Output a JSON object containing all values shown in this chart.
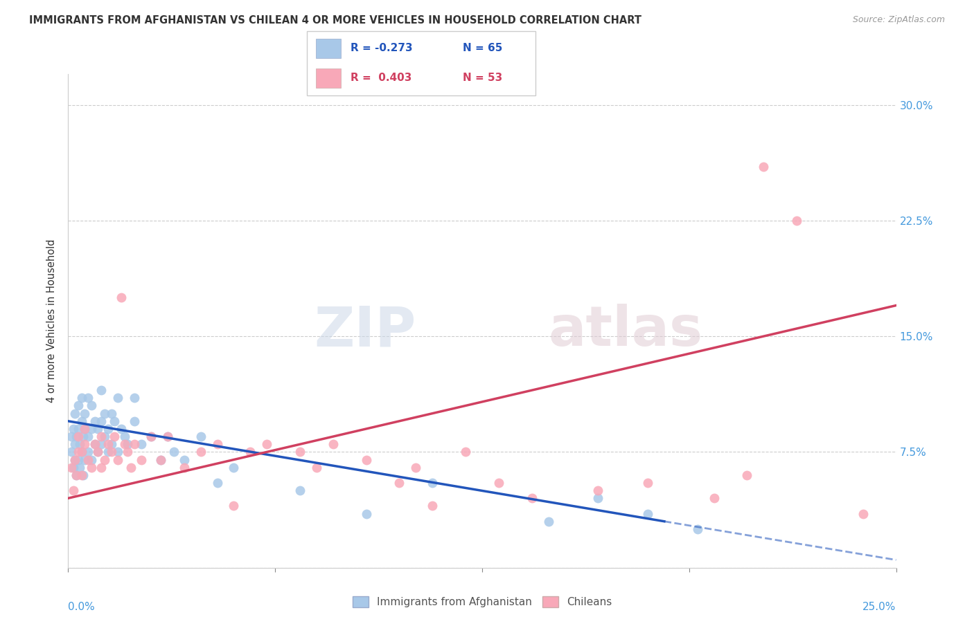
{
  "title": "IMMIGRANTS FROM AFGHANISTAN VS CHILEAN 4 OR MORE VEHICLES IN HOUSEHOLD CORRELATION CHART",
  "source": "Source: ZipAtlas.com",
  "ylabel": "4 or more Vehicles in Household",
  "legend1_r": "R = -0.273",
  "legend1_n": "N = 65",
  "legend2_r": "R =  0.403",
  "legend2_n": "N = 53",
  "legend_label1": "Immigrants from Afghanistan",
  "legend_label2": "Chileans",
  "xlim": [
    0.0,
    25.0
  ],
  "ylim": [
    0.0,
    32.0
  ],
  "yticks": [
    0.0,
    7.5,
    15.0,
    22.5,
    30.0
  ],
  "ytick_labels": [
    "",
    "7.5%",
    "15.0%",
    "22.5%",
    "30.0%"
  ],
  "color_blue": "#a8c8e8",
  "color_pink": "#f8a8b8",
  "line_blue": "#2255bb",
  "line_pink": "#d04060",
  "blue_line_x0": 0.0,
  "blue_line_y0": 9.5,
  "blue_line_x1": 18.0,
  "blue_line_y1": 3.0,
  "blue_dash_x1": 25.0,
  "blue_dash_y1": 0.5,
  "pink_line_x0": 0.0,
  "pink_line_y0": 4.5,
  "pink_line_x1": 25.0,
  "pink_line_y1": 17.0,
  "blue_scatter_x": [
    0.1,
    0.1,
    0.15,
    0.15,
    0.2,
    0.2,
    0.2,
    0.25,
    0.25,
    0.3,
    0.3,
    0.3,
    0.35,
    0.35,
    0.4,
    0.4,
    0.4,
    0.45,
    0.45,
    0.5,
    0.5,
    0.5,
    0.6,
    0.6,
    0.6,
    0.7,
    0.7,
    0.7,
    0.8,
    0.8,
    0.9,
    0.9,
    1.0,
    1.0,
    1.0,
    1.1,
    1.1,
    1.2,
    1.2,
    1.3,
    1.3,
    1.4,
    1.5,
    1.5,
    1.6,
    1.7,
    1.8,
    2.0,
    2.0,
    2.2,
    2.5,
    2.8,
    3.0,
    3.2,
    3.5,
    4.0,
    4.5,
    5.0,
    7.0,
    9.0,
    11.0,
    14.5,
    16.0,
    17.5,
    19.0
  ],
  "blue_scatter_y": [
    7.5,
    8.5,
    6.5,
    9.0,
    7.0,
    8.0,
    10.0,
    6.0,
    8.5,
    7.0,
    9.0,
    10.5,
    6.5,
    8.0,
    7.5,
    9.5,
    11.0,
    6.0,
    8.5,
    7.0,
    9.0,
    10.0,
    7.5,
    8.5,
    11.0,
    7.0,
    9.0,
    10.5,
    8.0,
    9.5,
    7.5,
    9.0,
    8.0,
    9.5,
    11.5,
    8.5,
    10.0,
    7.5,
    9.0,
    8.0,
    10.0,
    9.5,
    7.5,
    11.0,
    9.0,
    8.5,
    8.0,
    9.5,
    11.0,
    8.0,
    8.5,
    7.0,
    8.5,
    7.5,
    7.0,
    8.5,
    5.5,
    6.5,
    5.0,
    3.5,
    5.5,
    3.0,
    4.5,
    3.5,
    2.5
  ],
  "pink_scatter_x": [
    0.1,
    0.15,
    0.2,
    0.25,
    0.3,
    0.3,
    0.4,
    0.4,
    0.5,
    0.5,
    0.6,
    0.7,
    0.8,
    0.9,
    1.0,
    1.0,
    1.1,
    1.2,
    1.3,
    1.4,
    1.5,
    1.6,
    1.7,
    1.8,
    1.9,
    2.0,
    2.2,
    2.5,
    2.8,
    3.0,
    3.5,
    4.0,
    4.5,
    5.0,
    5.5,
    6.0,
    7.0,
    7.5,
    8.0,
    9.0,
    10.0,
    10.5,
    11.0,
    12.0,
    13.0,
    14.0,
    16.0,
    17.5,
    19.5,
    20.5,
    21.0,
    22.0,
    24.0
  ],
  "pink_scatter_y": [
    6.5,
    5.0,
    7.0,
    6.0,
    7.5,
    8.5,
    6.0,
    7.5,
    8.0,
    9.0,
    7.0,
    6.5,
    8.0,
    7.5,
    6.5,
    8.5,
    7.0,
    8.0,
    7.5,
    8.5,
    7.0,
    17.5,
    8.0,
    7.5,
    6.5,
    8.0,
    7.0,
    8.5,
    7.0,
    8.5,
    6.5,
    7.5,
    8.0,
    4.0,
    7.5,
    8.0,
    7.5,
    6.5,
    8.0,
    7.0,
    5.5,
    6.5,
    4.0,
    7.5,
    5.5,
    4.5,
    5.0,
    5.5,
    4.5,
    6.0,
    26.0,
    22.5,
    3.5
  ]
}
